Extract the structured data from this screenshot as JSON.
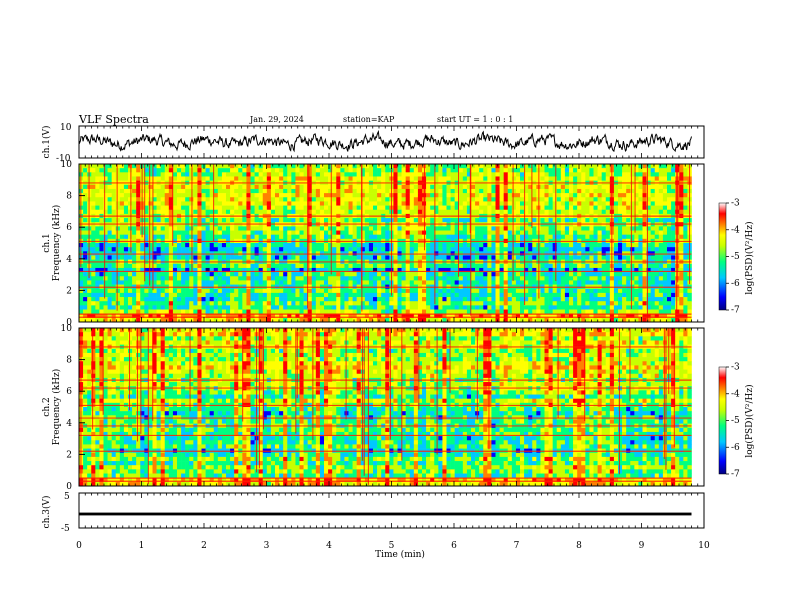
{
  "header": {
    "title": "VLF Spectra",
    "date": "Jan. 29, 2024",
    "station": "station=KAP",
    "start": "start UT =  1 : 0 : 1"
  },
  "chart_data": [
    {
      "type": "line",
      "panel": "ch1-waveform",
      "ylabel": "ch.1(V)",
      "ylim": [
        -10,
        10
      ],
      "xlim": [
        0,
        10
      ],
      "ytick_labels": [
        "10",
        "-10"
      ],
      "description_of_values": "noisy waveform fluctuating roughly between -5 and 5 V over 0 to 9.8 min"
    },
    {
      "type": "heatmap",
      "panel": "ch1-spectrogram",
      "ylabel_line1": "ch.1",
      "ylabel_line2": "Frequency (kHz)",
      "ylim": [
        0,
        10
      ],
      "xlim": [
        0,
        10
      ],
      "data_extent_min": 9.8,
      "ytick_labels": [
        "0",
        "2",
        "4",
        "6",
        "8",
        "10"
      ],
      "colorbar": {
        "label": "log(PSD)(V²/Hz)",
        "range": [
          -7,
          -3
        ],
        "tick_labels": [
          "-3",
          "-4",
          "-5",
          "-6",
          "-7"
        ]
      }
    },
    {
      "type": "heatmap",
      "panel": "ch2-spectrogram",
      "ylabel_line1": "ch.2",
      "ylabel_line2": "Frequency (kHz)",
      "ylim": [
        0,
        10
      ],
      "xlim": [
        0,
        10
      ],
      "data_extent_min": 9.8,
      "ytick_labels": [
        "0",
        "2",
        "4",
        "6",
        "8",
        "10"
      ],
      "colorbar": {
        "label": "log(PSD)(V²/Hz)",
        "range": [
          -7,
          -3
        ],
        "tick_labels": [
          "-3",
          "-4",
          "-5",
          "-6",
          "-7"
        ]
      }
    },
    {
      "type": "line",
      "panel": "ch3-waveform",
      "ylabel": "ch.3(V)",
      "ylim": [
        -5,
        5
      ],
      "xlim": [
        0,
        10
      ],
      "ytick_labels": [
        "5",
        "-5"
      ],
      "description_of_values": "nearly constant trace around -1 V over 0 to 9.8 min"
    }
  ],
  "xaxis": {
    "label": "Time (min)",
    "tick_labels": [
      "0",
      "1",
      "2",
      "3",
      "4",
      "5",
      "6",
      "7",
      "8",
      "9",
      "10"
    ]
  },
  "colors": {
    "colormap": [
      "#000080",
      "#0000ff",
      "#00c8ff",
      "#00ff80",
      "#c8ff00",
      "#ffff00",
      "#ff8000",
      "#ff0000",
      "#ffffff"
    ]
  }
}
